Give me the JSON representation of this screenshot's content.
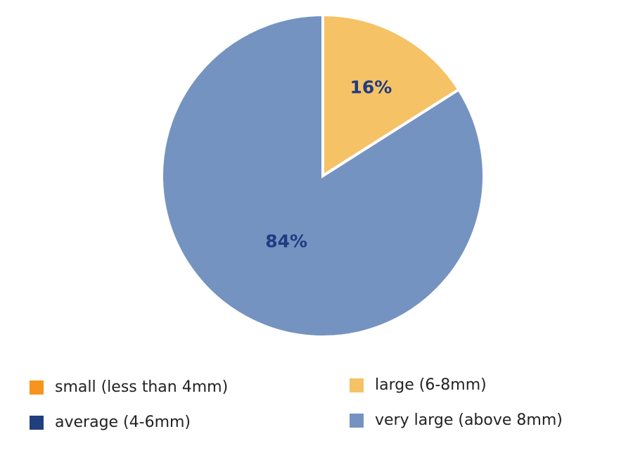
{
  "chart_data": {
    "type": "pie",
    "categories": [
      "small (less than 4mm)",
      "average (4-6mm)",
      "large (6-8mm)",
      "very large (above 8mm)"
    ],
    "values": [
      0,
      0,
      16,
      84
    ],
    "value_labels": [
      null,
      null,
      "16%",
      "84%"
    ],
    "colors": [
      "#f7941d",
      "#1f3f7f",
      "#f5c266",
      "#7593c0"
    ]
  }
}
